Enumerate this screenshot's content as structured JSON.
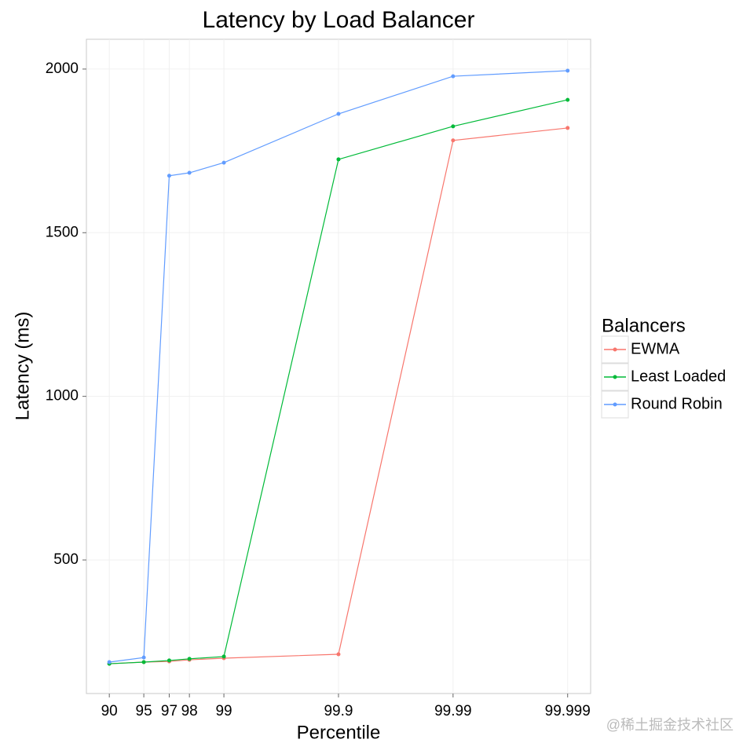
{
  "chart_data": {
    "type": "line",
    "title": "Latency by Load Balancer",
    "x_label": "Percentile",
    "y_label": "Latency (ms)",
    "x": [
      90,
      95,
      97,
      98,
      99,
      99.9,
      99.99,
      99.999
    ],
    "xscale": "log-tail",
    "xlim": [
      84.15,
      99.99937
    ],
    "xticks": [
      90,
      95,
      97,
      98,
      99,
      99.9,
      99.99,
      99.999
    ],
    "ylim": [
      92,
      2091
    ],
    "yticks": [
      500,
      1000,
      1500,
      2000
    ],
    "grid": true,
    "legend_title": "Balancers",
    "legend_position": "right",
    "series": [
      {
        "name": "EWMA",
        "color": "#F8766D",
        "values": [
          183,
          188,
          190,
          195,
          200,
          212,
          1782,
          1820
        ]
      },
      {
        "name": "Least Loaded",
        "color": "#00BA38",
        "values": [
          183,
          188,
          193,
          198,
          205,
          1724,
          1825,
          1906
        ]
      },
      {
        "name": "Round Robin",
        "color": "#619CFF",
        "values": [
          188,
          202,
          1674,
          1683,
          1714,
          1863,
          1978,
          1995
        ]
      }
    ],
    "watermark": "@稀土掘金技术社区"
  }
}
